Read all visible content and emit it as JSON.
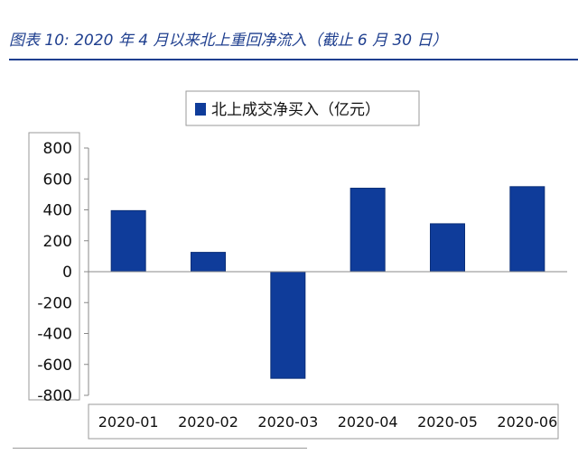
{
  "figure": {
    "caption": "图表 10:  2020 年 4 月以来北上重回净流入（截止 6 月 30 日）"
  },
  "chart_data": {
    "type": "bar",
    "categories": [
      "2020-01",
      "2020-02",
      "2020-03",
      "2020-04",
      "2020-05",
      "2020-06"
    ],
    "series": [
      {
        "name": "北上成交净买入（亿元）",
        "values": [
          395,
          125,
          -690,
          540,
          310,
          550
        ]
      }
    ],
    "ylim": [
      -800,
      800
    ],
    "yticks": [
      800,
      600,
      400,
      200,
      0,
      -200,
      -400,
      -600,
      -800
    ],
    "grid": false,
    "legend": "top-center",
    "colors": {
      "bar": "#0f3c9a",
      "bar_stroke": "#0a2e78",
      "axis": "#888888"
    }
  }
}
